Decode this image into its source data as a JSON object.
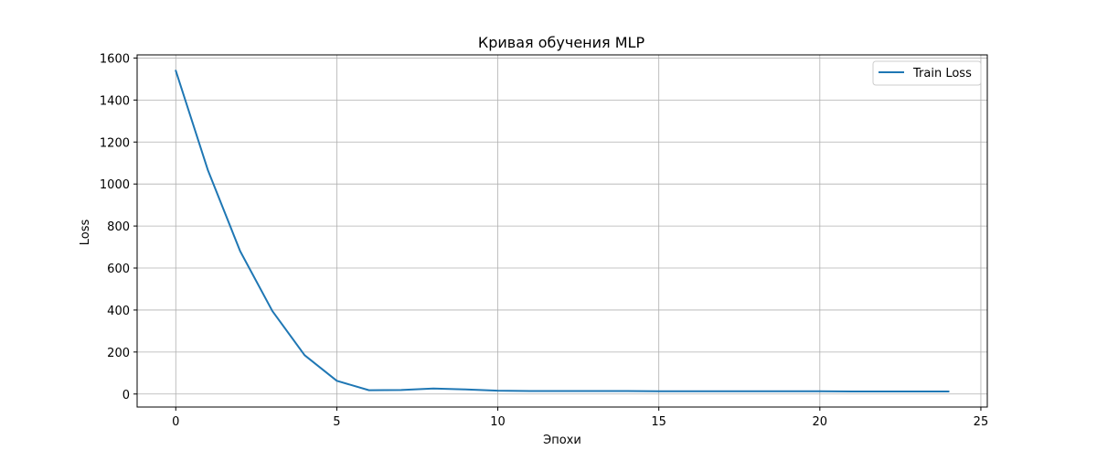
{
  "chart_data": {
    "type": "line",
    "title": "Кривая обучения MLP",
    "xlabel": "Эпохи",
    "ylabel": "Loss",
    "xlim": [
      -1.2,
      25.2
    ],
    "ylim": [
      -62,
      1615
    ],
    "xticks": [
      0,
      5,
      10,
      15,
      20,
      25
    ],
    "yticks": [
      0,
      200,
      400,
      600,
      800,
      1000,
      1200,
      1400,
      1600
    ],
    "grid": true,
    "legend_position": "top-right",
    "series": [
      {
        "name": "Train Loss",
        "color": "#1f77b4",
        "x": [
          0,
          1,
          2,
          3,
          4,
          5,
          6,
          7,
          8,
          9,
          10,
          11,
          12,
          13,
          14,
          15,
          16,
          17,
          18,
          19,
          20,
          21,
          22,
          23,
          24
        ],
        "y": [
          1540,
          1065,
          680,
          395,
          185,
          63,
          18,
          19,
          26,
          22,
          16,
          14,
          14,
          14,
          14,
          13,
          13,
          13,
          13,
          13,
          13,
          12,
          12,
          12,
          12
        ]
      }
    ]
  }
}
